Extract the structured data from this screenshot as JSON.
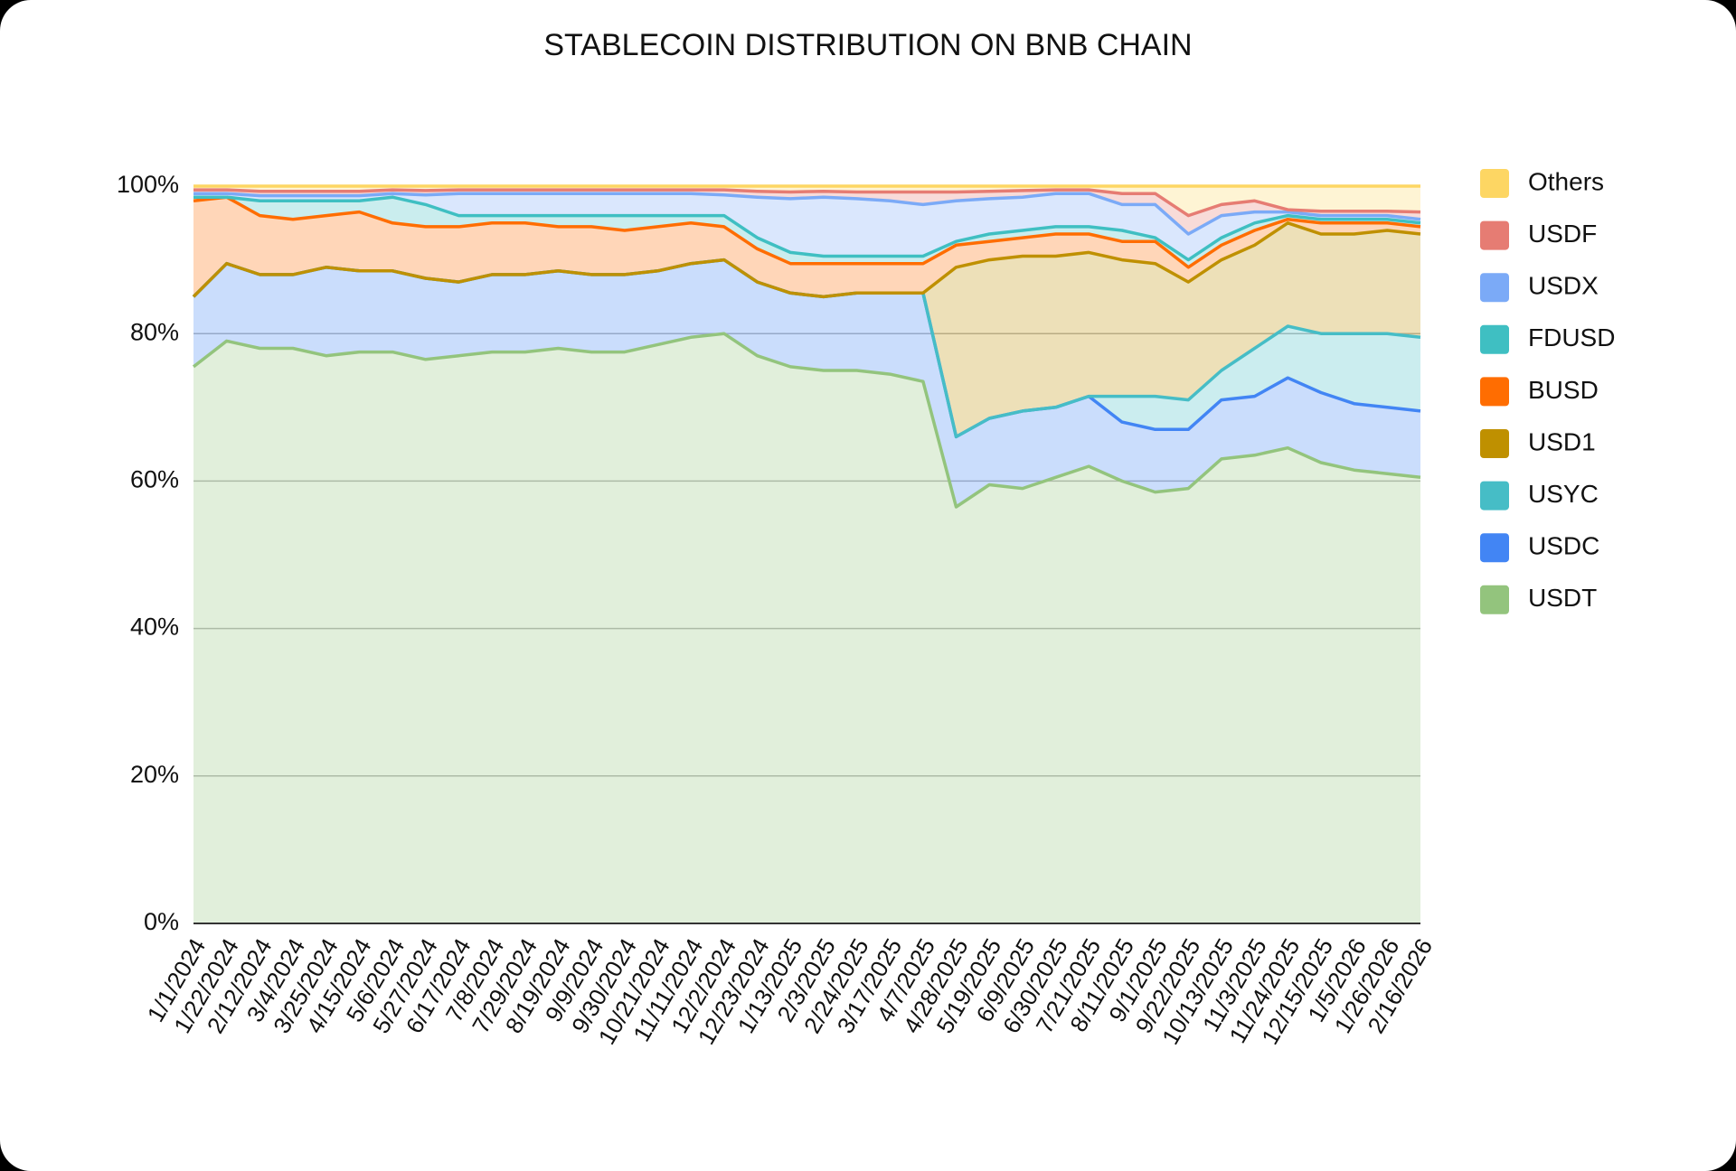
{
  "chart_data": {
    "type": "stacked_area_percent",
    "title": "STABLECOIN DISTRIBUTION ON BNB CHAIN",
    "categories": [
      "1/1/2024",
      "1/22/2024",
      "2/12/2024",
      "3/4/2024",
      "3/25/2024",
      "4/15/2024",
      "5/6/2024",
      "5/27/2024",
      "6/17/2024",
      "7/8/2024",
      "7/29/2024",
      "8/19/2024",
      "9/9/2024",
      "9/30/2024",
      "10/21/2024",
      "11/11/2024",
      "12/2/2024",
      "12/23/2024",
      "1/13/2025",
      "2/3/2025",
      "2/24/2025",
      "3/17/2025",
      "4/7/2025",
      "4/28/2025",
      "5/19/2025",
      "6/9/2025",
      "6/30/2025",
      "7/21/2025",
      "8/11/2025",
      "9/1/2025",
      "9/22/2025",
      "10/13/2025",
      "11/3/2025",
      "11/24/2025",
      "12/15/2025",
      "1/5/2026",
      "1/26/2026",
      "2/16/2026"
    ],
    "ylim": [
      0,
      100
    ],
    "yticks": [
      {
        "value": 0,
        "label": "0%"
      },
      {
        "value": 20,
        "label": "20%"
      },
      {
        "value": 40,
        "label": "40%"
      },
      {
        "value": 60,
        "label": "60%"
      },
      {
        "value": 80,
        "label": "80%"
      },
      {
        "value": 100,
        "label": "100%"
      }
    ],
    "grid": true,
    "legend": "right",
    "series": [
      {
        "name": "USDT",
        "color": "#93c47d",
        "values": [
          75.5,
          79,
          78,
          78,
          77,
          77.5,
          77.5,
          76.5,
          77,
          77.5,
          77.5,
          78,
          77.5,
          77.5,
          78.5,
          79.5,
          80,
          77,
          75.5,
          75,
          75,
          74.5,
          73.5,
          56.5,
          59.5,
          59,
          60.5,
          62,
          60,
          58.5,
          59,
          63,
          63.5,
          64.5,
          62.5,
          61.5,
          61,
          60.5
        ]
      },
      {
        "name": "USDC",
        "color": "#4285f4",
        "values": [
          9.5,
          10.5,
          10,
          10,
          12,
          11,
          11,
          11,
          10,
          10.5,
          10.5,
          10.5,
          10.5,
          10.5,
          10,
          10,
          10,
          10,
          10,
          10,
          10.5,
          11,
          12,
          9.5,
          9,
          10.5,
          9.5,
          9.5,
          8,
          8.5,
          8,
          8,
          8,
          9.5,
          9.5,
          9,
          9,
          9
        ]
      },
      {
        "name": "USYC",
        "color": "#46bdc6",
        "values": [
          0,
          0,
          0,
          0,
          0,
          0,
          0,
          0,
          0,
          0,
          0,
          0,
          0,
          0,
          0,
          0,
          0,
          0,
          0,
          0,
          0,
          0,
          0,
          0,
          0,
          0,
          0,
          0,
          3.5,
          4.5,
          4,
          4,
          6.5,
          7,
          8,
          9.5,
          10,
          10
        ]
      },
      {
        "name": "USD1",
        "color": "#bf9000",
        "values": [
          0,
          0,
          0,
          0,
          0,
          0,
          0,
          0,
          0,
          0,
          0,
          0,
          0,
          0,
          0,
          0,
          0,
          0,
          0,
          0,
          0,
          0,
          0,
          23,
          21.5,
          21,
          20.5,
          19.5,
          18.5,
          18,
          16,
          15,
          14,
          14,
          13.5,
          13.5,
          14,
          14
        ]
      },
      {
        "name": "BUSD",
        "color": "#ff6d01",
        "values": [
          13,
          9,
          8,
          7.5,
          7,
          8,
          6.5,
          7,
          7.5,
          7,
          7,
          6,
          6.5,
          6,
          6,
          5.5,
          4.5,
          4.5,
          4,
          4.5,
          4,
          4,
          4,
          3,
          2.5,
          2.5,
          3,
          2.5,
          2.5,
          3,
          2,
          2,
          2,
          0.5,
          1.5,
          1.5,
          1,
          1
        ]
      },
      {
        "name": "FDUSD",
        "color": "#3fbfc2",
        "values": [
          0.5,
          0,
          2,
          2.5,
          2,
          1.5,
          3.5,
          3,
          1.5,
          1,
          1,
          1.5,
          1.5,
          2,
          1.5,
          1,
          1.5,
          1.5,
          1.5,
          1,
          1,
          1,
          1,
          0.5,
          1,
          1,
          1,
          1,
          1.5,
          0.5,
          1,
          1,
          1,
          0.5,
          0.5,
          0.5,
          0.5,
          0.5
        ]
      },
      {
        "name": "USDX",
        "color": "#7baaf7",
        "values": [
          0.5,
          0.5,
          0.7,
          0.7,
          0.7,
          0.7,
          0.5,
          1.3,
          3,
          3,
          3,
          3,
          3,
          3,
          3,
          3,
          2.8,
          5.5,
          7.3,
          8,
          7.8,
          7.5,
          7,
          5.5,
          4.8,
          4.5,
          4.5,
          4.5,
          3.5,
          4.5,
          3.5,
          3,
          1.5,
          0.5,
          0.5,
          0.5,
          0.5,
          0.5
        ]
      },
      {
        "name": "USDF",
        "color": "#e67c73",
        "values": [
          0.5,
          0.5,
          0.6,
          0.6,
          0.6,
          0.6,
          0.5,
          0.6,
          0.5,
          0.5,
          0.5,
          0.5,
          0.5,
          0.5,
          0.5,
          0.5,
          0.7,
          0.8,
          0.9,
          0.8,
          0.9,
          1.2,
          1.7,
          1.2,
          1,
          0.9,
          0.5,
          0.5,
          1.5,
          1.5,
          2.5,
          1.5,
          1.5,
          0.3,
          0.6,
          0.6,
          0.6,
          1
        ]
      },
      {
        "name": "Others",
        "color": "#fdd663",
        "values": [
          0.5,
          0.5,
          0.7,
          0.7,
          0.7,
          0.7,
          0.5,
          0.6,
          0.5,
          0.5,
          0.5,
          0.5,
          0.5,
          0.5,
          0.5,
          0.5,
          0.5,
          0.7,
          0.8,
          0.7,
          0.8,
          0.8,
          0.8,
          0.8,
          0.7,
          0.6,
          0.5,
          0.5,
          1,
          1,
          4,
          2.5,
          2,
          3.2,
          3.4,
          3.4,
          3.4,
          3.5
        ]
      }
    ]
  }
}
